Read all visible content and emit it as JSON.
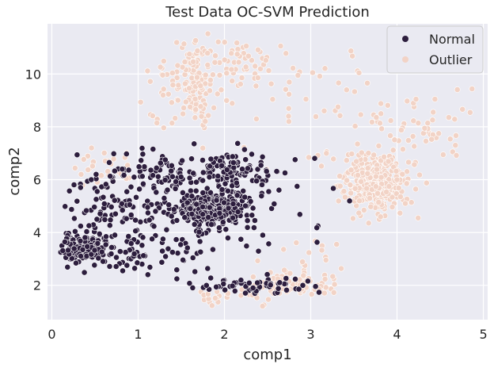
{
  "chart_data": {
    "type": "scatter",
    "title": "Test Data OC-SVM Prediction",
    "xlabel": "comp1",
    "ylabel": "comp2",
    "xlim": [
      -0.05,
      5.05
    ],
    "ylim": [
      0.7,
      11.9
    ],
    "xticks": [
      0,
      1,
      2,
      3,
      4,
      5
    ],
    "yticks": [
      2,
      4,
      6,
      8,
      10
    ],
    "grid": true,
    "legend_position": "top-right",
    "background": "#EAEAF2",
    "grid_color": "#FFFFFF",
    "series": [
      {
        "name": "Normal",
        "color": "#2D1E3E",
        "clusters": [
          {
            "cx": 0.35,
            "cy": 3.4,
            "sx": 0.12,
            "sy": 0.25,
            "n": 150,
            "seed": 11
          },
          {
            "cx": 0.75,
            "cy": 5.2,
            "sx": 0.35,
            "sy": 0.75,
            "n": 130,
            "seed": 12
          },
          {
            "cx": 1.25,
            "cy": 6.2,
            "sx": 0.3,
            "sy": 0.45,
            "n": 70,
            "seed": 13
          },
          {
            "cx": 1.85,
            "cy": 4.9,
            "sx": 0.2,
            "sy": 0.3,
            "n": 320,
            "seed": 14
          },
          {
            "cx": 2.1,
            "cy": 6.2,
            "sx": 0.25,
            "sy": 0.55,
            "n": 110,
            "seed": 15
          },
          {
            "cx": 1.6,
            "cy": 3.7,
            "sx": 0.45,
            "sy": 0.6,
            "n": 60,
            "seed": 16
          },
          {
            "cx": 2.3,
            "cy": 2.0,
            "sx": 0.35,
            "sy": 0.2,
            "n": 60,
            "seed": 17
          },
          {
            "cx": 0.85,
            "cy": 3.1,
            "sx": 0.25,
            "sy": 0.45,
            "n": 40,
            "seed": 18
          },
          {
            "cx": 2.9,
            "cy": 5.5,
            "sx": 0.35,
            "sy": 0.9,
            "n": 15,
            "seed": 19
          }
        ]
      },
      {
        "name": "Outlier",
        "color": "#F2D3C6",
        "clusters": [
          {
            "cx": 3.75,
            "cy": 5.9,
            "sx": 0.2,
            "sy": 0.55,
            "n": 360,
            "seed": 21
          },
          {
            "cx": 1.65,
            "cy": 9.7,
            "sx": 0.12,
            "sy": 0.75,
            "n": 110,
            "seed": 22
          },
          {
            "cx": 2.1,
            "cy": 10.4,
            "sx": 0.35,
            "sy": 0.55,
            "n": 60,
            "seed": 23
          },
          {
            "cx": 2.8,
            "cy": 2.05,
            "sx": 0.25,
            "sy": 0.25,
            "n": 80,
            "seed": 24
          },
          {
            "cx": 4.2,
            "cy": 7.8,
            "sx": 0.35,
            "sy": 0.6,
            "n": 50,
            "seed": 25
          },
          {
            "cx": 3.2,
            "cy": 8.7,
            "sx": 0.75,
            "sy": 1.3,
            "n": 45,
            "seed": 26
          },
          {
            "cx": 0.6,
            "cy": 6.4,
            "sx": 0.2,
            "sy": 0.45,
            "n": 30,
            "seed": 27
          },
          {
            "cx": 1.35,
            "cy": 9.3,
            "sx": 0.22,
            "sy": 0.6,
            "n": 25,
            "seed": 28
          },
          {
            "cx": 2.05,
            "cy": 1.6,
            "sx": 0.3,
            "sy": 0.2,
            "n": 30,
            "seed": 29
          },
          {
            "cx": 3.0,
            "cy": 3.2,
            "sx": 0.35,
            "sy": 0.55,
            "n": 12,
            "seed": 30
          }
        ]
      }
    ]
  }
}
